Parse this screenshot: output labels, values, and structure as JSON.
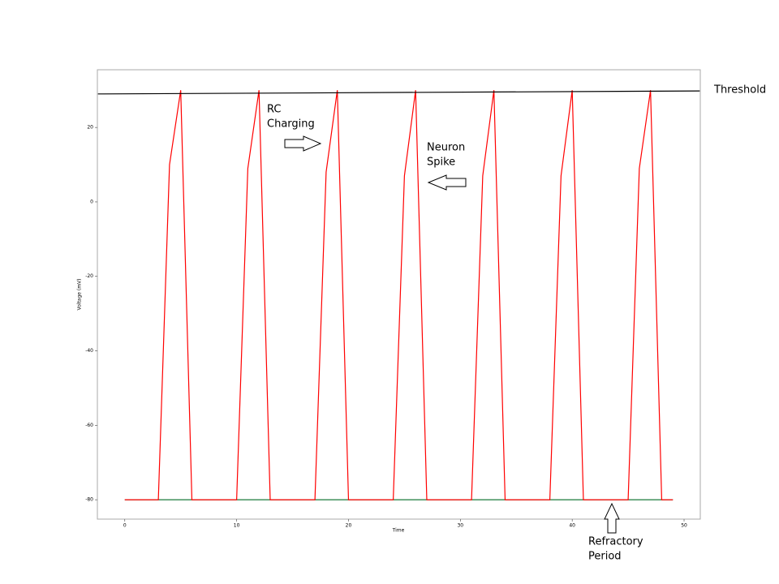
{
  "chart_data": {
    "type": "line",
    "x_label": "Time",
    "y_label": "Voltage (mV)",
    "x": [
      0,
      1,
      2,
      3,
      4,
      5,
      6,
      7,
      8,
      9,
      10,
      11,
      12,
      13,
      14,
      15,
      16,
      17,
      18,
      19,
      20,
      21,
      22,
      23,
      24,
      25,
      26,
      27,
      28,
      29,
      30,
      31,
      32,
      33,
      34,
      35,
      36,
      37,
      38,
      39,
      40,
      41,
      42,
      43,
      44,
      45,
      46,
      47,
      48,
      49
    ],
    "series": [
      {
        "color": "#1a7a3a",
        "values": [
          -80,
          -80,
          -80,
          -80,
          -80,
          -80,
          -80,
          -80,
          -80,
          -80,
          -80,
          -80,
          -80,
          -80,
          -80,
          -80,
          -80,
          -80,
          -80,
          -80,
          -80,
          -80,
          -80,
          -80,
          -80,
          -80,
          -80,
          -80,
          -80,
          -80,
          -80,
          -80,
          -80,
          -80,
          -80,
          -80,
          -80,
          -80,
          -80,
          -80,
          -80,
          -80,
          -80,
          -80,
          -80,
          -80,
          -80,
          -80,
          -80,
          -80
        ]
      },
      {
        "color": "#ff0000",
        "values": [
          -80,
          -80,
          -80,
          -80,
          10,
          30,
          -80,
          -80,
          -80,
          -80,
          -80,
          9,
          30,
          -80,
          -80,
          -80,
          -80,
          -80,
          8,
          30,
          -80,
          -80,
          -80,
          -80,
          -80,
          7,
          30,
          -80,
          -80,
          -80,
          -80,
          -80,
          7,
          30,
          -80,
          -80,
          -80,
          -80,
          -80,
          7,
          30,
          -80,
          -80,
          -80,
          -80,
          -80,
          9,
          30,
          -80,
          -80
        ]
      },
      {
        "name": "Threshold",
        "color": "#000000",
        "x": [
          -2.4,
          51.4
        ],
        "values": [
          29,
          29.8
        ]
      }
    ],
    "xlim": [
      -2.45,
      51.45
    ],
    "ylim": [
      -85.2,
      35.5
    ],
    "xticks": [
      0,
      10,
      20,
      30,
      40,
      50
    ],
    "yticks": [
      20,
      0,
      -20,
      -40,
      -60,
      -80
    ],
    "annotations": [
      {
        "lines": [
          "RC",
          "Charging"
        ]
      },
      {
        "lines": [
          "Neuron",
          "Spike"
        ]
      },
      {
        "lines": [
          "Refractory",
          "Period"
        ]
      }
    ]
  }
}
